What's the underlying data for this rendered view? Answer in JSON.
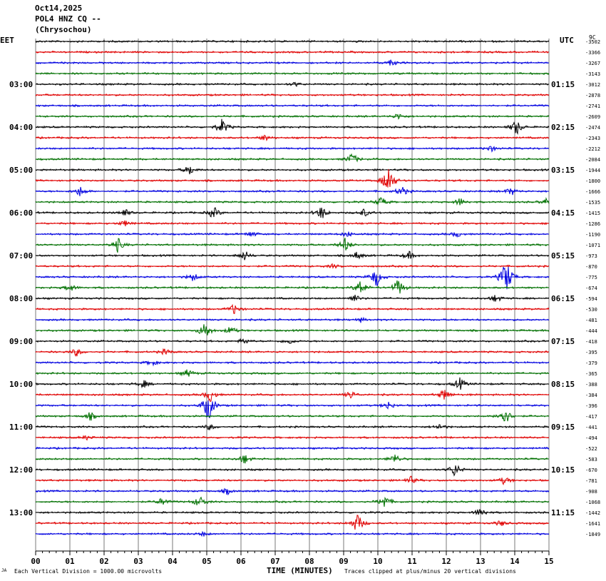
{
  "header": {
    "date": "Oct14,2025",
    "station": "POL4 HNZ CQ --",
    "location": "(Chrysochou)",
    "left_tz": "EET",
    "right_tz": "UTC",
    "scale_unit": "9C"
  },
  "footer": {
    "scale_note": "Each Vertical Division = 1000.00 microvolts",
    "xlabel": "TIME (MINUTES)",
    "clip_note": "Traces clipped at plus/minus 20 vertical divisions",
    "corner": "JA"
  },
  "colors": {
    "trace_cycle": [
      "#000000",
      "#e00000",
      "#0000e0",
      "#007000"
    ],
    "grid": "#7a7a7a"
  },
  "chart_data": {
    "type": "line",
    "subtype": "helicorder",
    "xlim": [
      0,
      15
    ],
    "x_ticks": [
      "00",
      "01",
      "02",
      "03",
      "04",
      "05",
      "06",
      "07",
      "08",
      "09",
      "10",
      "11",
      "12",
      "13",
      "14",
      "15"
    ],
    "left_time_labels": [
      {
        "row": 4,
        "text": "03:00"
      },
      {
        "row": 8,
        "text": "04:00"
      },
      {
        "row": 12,
        "text": "05:00"
      },
      {
        "row": 16,
        "text": "06:00"
      },
      {
        "row": 20,
        "text": "07:00"
      },
      {
        "row": 24,
        "text": "08:00"
      },
      {
        "row": 28,
        "text": "09:00"
      },
      {
        "row": 32,
        "text": "10:00"
      },
      {
        "row": 36,
        "text": "11:00"
      },
      {
        "row": 40,
        "text": "12:00"
      },
      {
        "row": 44,
        "text": "13:00"
      }
    ],
    "right_time_labels": [
      {
        "row": 4,
        "text": "01:15"
      },
      {
        "row": 8,
        "text": "02:15"
      },
      {
        "row": 12,
        "text": "03:15"
      },
      {
        "row": 16,
        "text": "04:15"
      },
      {
        "row": 20,
        "text": "05:15"
      },
      {
        "row": 24,
        "text": "06:15"
      },
      {
        "row": 28,
        "text": "07:15"
      },
      {
        "row": 32,
        "text": "08:15"
      },
      {
        "row": 36,
        "text": "09:15"
      },
      {
        "row": 40,
        "text": "10:15"
      },
      {
        "row": 44,
        "text": "11:15"
      }
    ],
    "trace_offsets": [
      -3502,
      -3366,
      -3267,
      -3143,
      -3012,
      -2878,
      -2741,
      -2609,
      -2474,
      -2343,
      -2212,
      -2084,
      -1944,
      -1800,
      -1666,
      -1535,
      -1415,
      -1286,
      -1190,
      -1071,
      -973,
      -870,
      -775,
      -674,
      -594,
      -530,
      -481,
      -444,
      -418,
      -395,
      -379,
      -365,
      -388,
      -384,
      -396,
      -417,
      -441,
      -494,
      -522,
      -583,
      -670,
      -781,
      -908,
      -1068,
      -1442,
      -1641,
      -1849
    ],
    "events": [
      {
        "row": 2,
        "x": 10.4,
        "amp": 0.3
      },
      {
        "row": 4,
        "x": 7.6,
        "amp": 0.2
      },
      {
        "row": 7,
        "x": 10.6,
        "amp": 0.3
      },
      {
        "row": 8,
        "x": 5.45,
        "amp": 0.8
      },
      {
        "row": 8,
        "x": 14.05,
        "amp": 0.8
      },
      {
        "row": 9,
        "x": 6.7,
        "amp": 0.3
      },
      {
        "row": 10,
        "x": 13.3,
        "amp": 0.3
      },
      {
        "row": 11,
        "x": 9.25,
        "amp": 0.6
      },
      {
        "row": 12,
        "x": 4.5,
        "amp": 0.5
      },
      {
        "row": 13,
        "x": 10.3,
        "amp": 1.6
      },
      {
        "row": 14,
        "x": 1.3,
        "amp": 0.5
      },
      {
        "row": 14,
        "x": 10.7,
        "amp": 0.5
      },
      {
        "row": 14,
        "x": 13.9,
        "amp": 0.4
      },
      {
        "row": 15,
        "x": 10.1,
        "amp": 0.5
      },
      {
        "row": 15,
        "x": 12.4,
        "amp": 0.4
      },
      {
        "row": 15,
        "x": 14.95,
        "amp": 0.4
      },
      {
        "row": 16,
        "x": 2.6,
        "amp": 0.4
      },
      {
        "row": 16,
        "x": 5.2,
        "amp": 0.6
      },
      {
        "row": 16,
        "x": 8.35,
        "amp": 0.7
      },
      {
        "row": 16,
        "x": 9.6,
        "amp": 0.4
      },
      {
        "row": 17,
        "x": 2.6,
        "amp": 0.3
      },
      {
        "row": 18,
        "x": 6.3,
        "amp": 0.3
      },
      {
        "row": 18,
        "x": 9.1,
        "amp": 0.3
      },
      {
        "row": 18,
        "x": 12.3,
        "amp": 0.3
      },
      {
        "row": 19,
        "x": 2.4,
        "amp": 0.7
      },
      {
        "row": 19,
        "x": 9.05,
        "amp": 0.7
      },
      {
        "row": 20,
        "x": 6.1,
        "amp": 0.5
      },
      {
        "row": 20,
        "x": 9.4,
        "amp": 0.4
      },
      {
        "row": 20,
        "x": 10.9,
        "amp": 0.4
      },
      {
        "row": 21,
        "x": 8.7,
        "amp": 0.2
      },
      {
        "row": 22,
        "x": 9.95,
        "amp": 1.0
      },
      {
        "row": 22,
        "x": 13.75,
        "amp": 1.9
      },
      {
        "row": 22,
        "x": 4.6,
        "amp": 0.4
      },
      {
        "row": 23,
        "x": 9.5,
        "amp": 0.8
      },
      {
        "row": 23,
        "x": 10.6,
        "amp": 0.9
      },
      {
        "row": 23,
        "x": 1.0,
        "amp": 0.4
      },
      {
        "row": 24,
        "x": 9.3,
        "amp": 0.4
      },
      {
        "row": 24,
        "x": 13.45,
        "amp": 0.4
      },
      {
        "row": 25,
        "x": 5.8,
        "amp": 0.5
      },
      {
        "row": 26,
        "x": 9.5,
        "amp": 0.2
      },
      {
        "row": 27,
        "x": 4.95,
        "amp": 0.9
      },
      {
        "row": 27,
        "x": 5.7,
        "amp": 0.4
      },
      {
        "row": 28,
        "x": 6.1,
        "amp": 0.3
      },
      {
        "row": 28,
        "x": 7.4,
        "amp": 0.3
      },
      {
        "row": 29,
        "x": 1.2,
        "amp": 0.4
      },
      {
        "row": 29,
        "x": 3.8,
        "amp": 0.3
      },
      {
        "row": 30,
        "x": 3.4,
        "amp": 0.3
      },
      {
        "row": 31,
        "x": 4.45,
        "amp": 0.4
      },
      {
        "row": 32,
        "x": 3.15,
        "amp": 0.4
      },
      {
        "row": 32,
        "x": 12.4,
        "amp": 0.6
      },
      {
        "row": 33,
        "x": 5.1,
        "amp": 0.7
      },
      {
        "row": 33,
        "x": 11.95,
        "amp": 0.6
      },
      {
        "row": 33,
        "x": 9.2,
        "amp": 0.4
      },
      {
        "row": 34,
        "x": 5.05,
        "amp": 1.6
      },
      {
        "row": 34,
        "x": 10.3,
        "amp": 0.4
      },
      {
        "row": 35,
        "x": 13.7,
        "amp": 1.0
      },
      {
        "row": 35,
        "x": 1.6,
        "amp": 0.4
      },
      {
        "row": 36,
        "x": 5.1,
        "amp": 0.3
      },
      {
        "row": 36,
        "x": 11.8,
        "amp": 0.3
      },
      {
        "row": 37,
        "x": 1.5,
        "amp": 0.2
      },
      {
        "row": 39,
        "x": 6.1,
        "amp": 0.5
      },
      {
        "row": 39,
        "x": 10.5,
        "amp": 0.5
      },
      {
        "row": 40,
        "x": 12.25,
        "amp": 0.7
      },
      {
        "row": 41,
        "x": 10.95,
        "amp": 0.4
      },
      {
        "row": 41,
        "x": 13.7,
        "amp": 0.4
      },
      {
        "row": 42,
        "x": 5.6,
        "amp": 0.3
      },
      {
        "row": 43,
        "x": 4.8,
        "amp": 0.6
      },
      {
        "row": 43,
        "x": 10.2,
        "amp": 0.7
      },
      {
        "row": 43,
        "x": 3.7,
        "amp": 0.4
      },
      {
        "row": 44,
        "x": 13.0,
        "amp": 0.5
      },
      {
        "row": 45,
        "x": 9.4,
        "amp": 1.0
      },
      {
        "row": 45,
        "x": 13.6,
        "amp": 0.3
      },
      {
        "row": 46,
        "x": 4.9,
        "amp": 0.2
      }
    ]
  }
}
